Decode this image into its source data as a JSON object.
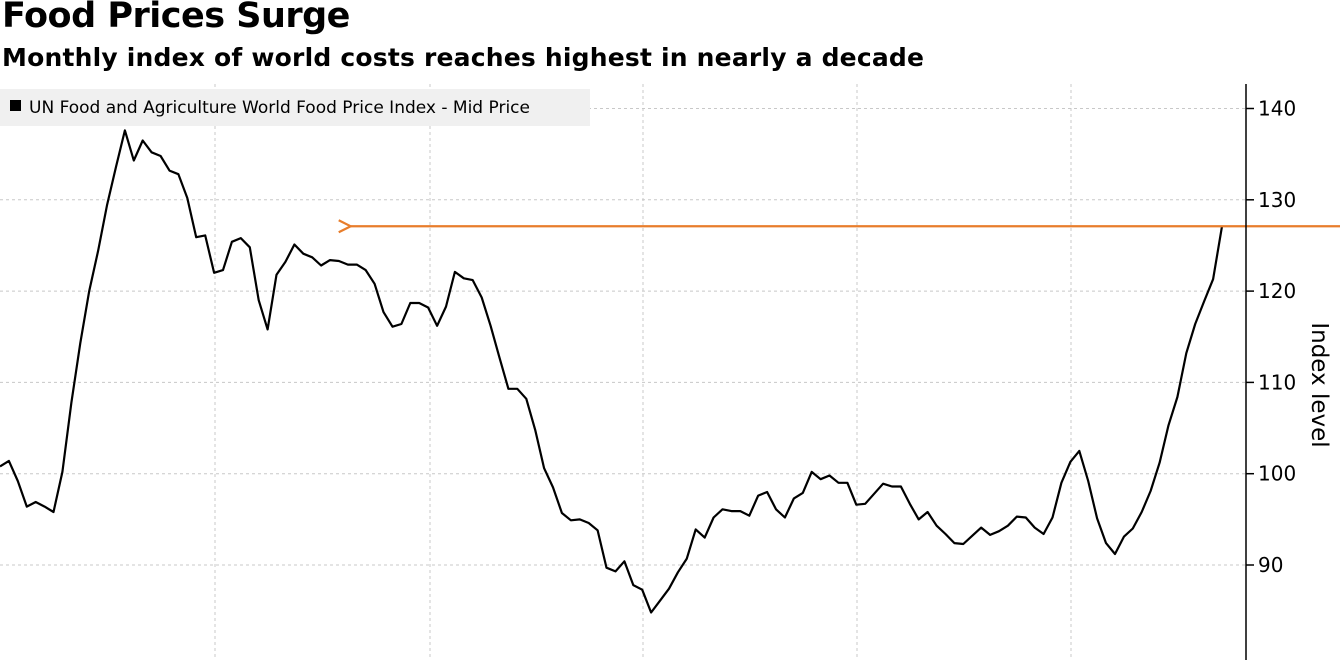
{
  "title": "Food Prices Surge",
  "subtitle": "Monthly index of world costs reaches highest in nearly a decade",
  "chart_data": {
    "type": "line",
    "ylabel": "Index level",
    "ylim": [
      80,
      142
    ],
    "yticks": [
      90,
      100,
      110,
      120,
      130,
      140
    ],
    "grid": true,
    "legend_position": "top-left",
    "line_color": "#000000",
    "annotation": {
      "type": "arrow",
      "color": "#e87d2b",
      "y": 127.1,
      "from_index": 174,
      "to_index": 16
    },
    "series": [
      {
        "name": "UN Food and Agriculture World Food Price Index - Mid Price",
        "values": [
          100.8,
          101.4,
          99.2,
          96.4,
          96.9,
          96.4,
          95.8,
          100.2,
          107.8,
          114.3,
          120.0,
          124.4,
          129.4,
          133.6,
          137.6,
          134.3,
          136.5,
          135.2,
          134.8,
          133.2,
          132.8,
          130.2,
          125.9,
          126.1,
          122.0,
          122.3,
          125.4,
          125.8,
          124.8,
          119.0,
          115.8,
          121.8,
          123.2,
          125.1,
          124.1,
          123.7,
          122.8,
          123.4,
          123.3,
          122.9,
          122.9,
          122.3,
          120.8,
          117.7,
          116.1,
          116.4,
          118.7,
          118.7,
          118.2,
          116.2,
          118.3,
          122.1,
          121.4,
          121.2,
          119.3,
          116.2,
          112.7,
          109.3,
          109.3,
          108.2,
          104.8,
          100.6,
          98.5,
          95.7,
          94.9,
          95.0,
          94.6,
          93.8,
          89.7,
          89.3,
          90.4,
          87.8,
          87.3,
          84.8,
          86.1,
          87.4,
          89.2,
          90.7,
          93.9,
          93.0,
          95.2,
          96.1,
          95.9,
          95.9,
          95.4,
          97.6,
          98.0,
          96.1,
          95.2,
          97.3,
          97.9,
          100.2,
          99.4,
          99.8,
          99.0,
          99.0,
          96.6,
          96.7,
          97.8,
          98.9,
          98.6,
          98.6,
          96.7,
          95.0,
          95.8,
          94.3,
          93.4,
          92.4,
          92.3,
          93.2,
          94.1,
          93.3,
          93.7,
          94.3,
          95.3,
          95.2,
          94.1,
          93.4,
          95.2,
          99.0,
          101.3,
          102.5,
          99.2,
          95.1,
          92.4,
          91.2,
          93.1,
          94.0,
          95.8,
          98.1,
          101.2,
          105.3,
          108.4,
          113.2,
          116.4,
          118.9,
          121.3,
          127.1
        ]
      }
    ]
  }
}
